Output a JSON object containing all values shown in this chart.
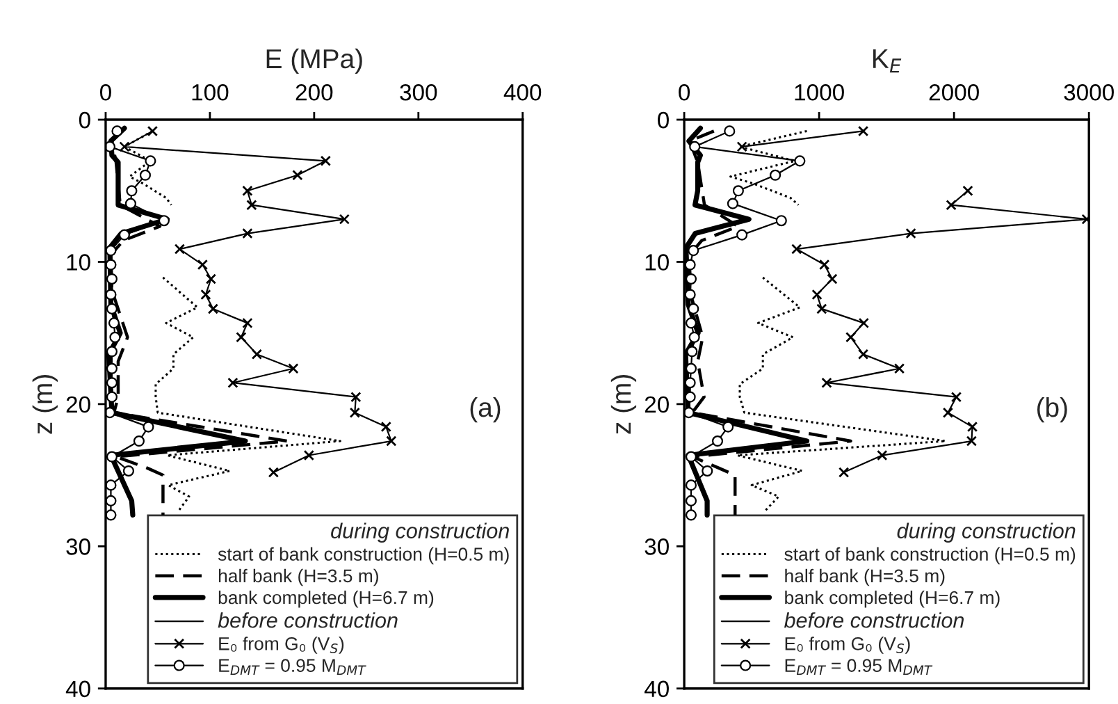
{
  "chart_data": [
    {
      "type": "line",
      "xlabel": "E (MPa)",
      "ylabel": "z (m)",
      "xlim": [
        0,
        400
      ],
      "xticks": [
        0,
        100,
        200,
        300,
        400
      ],
      "ylim": [
        40,
        0
      ],
      "yticks": [
        0,
        10,
        20,
        30,
        40
      ],
      "grid": false,
      "legend": "bottom right",
      "legend_title": "during construction",
      "annotations": [
        "(a)",
        "before construction"
      ],
      "series": [
        {
          "name": "start of bank construction (H=0.5 m)",
          "color": "#000000",
          "line_style": "dotted",
          "marker": "none",
          "x": [
            45,
            18,
            43,
            23,
            36,
            58,
            63,
            null,
            55,
            88,
            58,
            84,
            65,
            65,
            48,
            48,
            50,
            225,
            59,
            119,
            60,
            80,
            70
          ],
          "values": [
            0.8,
            1.9,
            2.9,
            4.0,
            4.5,
            5.5,
            6.0,
            null,
            11.1,
            13.2,
            14.3,
            15.3,
            16.5,
            17.5,
            18.6,
            19.5,
            20.6,
            22.6,
            23.6,
            24.7,
            25.7,
            26.5,
            27.5
          ]
        },
        {
          "name": "half bank (H=3.5 m)",
          "color": "#000000",
          "line_style": "dashed",
          "marker": "none",
          "x": [
            15,
            6,
            10,
            14,
            52,
            17,
            5,
            6,
            21,
            12,
            12,
            8,
            174,
            10,
            40,
            55,
            55
          ],
          "values": [
            0.8,
            1.5,
            3.0,
            6.0,
            7.5,
            8.5,
            9.5,
            12.0,
            15.3,
            17.0,
            19.5,
            20.6,
            22.6,
            23.7,
            24.5,
            25.0,
            27.8
          ]
        },
        {
          "name": "bank completed (H=6.7 m)",
          "color": "#000000",
          "line_style": "solid",
          "marker": "none",
          "x": [
            18,
            5,
            6,
            12,
            12,
            12,
            59,
            15,
            4,
            5,
            14,
            3,
            6,
            134,
            5,
            25,
            26
          ],
          "values": [
            0.6,
            1.5,
            2.5,
            3.0,
            5.0,
            6.0,
            7.0,
            8.0,
            9.0,
            13.0,
            15.0,
            16.5,
            20.6,
            22.6,
            23.6,
            26.8,
            27.8
          ]
        },
        {
          "name": "E₀ from G₀ (V$_{S}$)",
          "color": "#000000",
          "line_style": "solid",
          "marker": "cross",
          "x": [
            45,
            18,
            211,
            184,
            136,
            140,
            229,
            136,
            71,
            93,
            101,
            96,
            103,
            136,
            130,
            145,
            180,
            122,
            240,
            239,
            269,
            274,
            195,
            161
          ],
          "values": [
            0.8,
            1.9,
            2.9,
            3.9,
            5.0,
            6.0,
            7.0,
            8.0,
            9.1,
            10.2,
            11.2,
            12.3,
            13.3,
            14.3,
            15.3,
            16.5,
            17.5,
            18.5,
            19.5,
            20.6,
            21.6,
            22.6,
            23.6,
            24.8
          ]
        },
        {
          "name": "E$_{DMT}$ = 0.95 M$_{DMT}$",
          "color": "#000000",
          "line_style": "solid",
          "marker": "circle",
          "x": [
            11,
            4,
            43,
            38,
            25,
            24,
            56,
            18,
            5,
            5,
            6,
            5,
            6,
            8,
            9,
            6,
            6,
            6,
            6,
            4,
            41,
            32,
            6,
            22,
            5,
            5,
            5
          ],
          "values": [
            0.8,
            1.9,
            2.9,
            3.9,
            5.0,
            5.9,
            7.1,
            8.1,
            9.2,
            10.2,
            11.2,
            12.3,
            13.3,
            14.3,
            15.3,
            16.3,
            17.5,
            18.5,
            19.5,
            20.6,
            21.6,
            22.6,
            23.7,
            24.7,
            25.7,
            26.8,
            27.8
          ]
        }
      ]
    },
    {
      "type": "line",
      "xlabel": "K$_{E}$",
      "ylabel": "z (m)",
      "xlim": [
        0,
        3000
      ],
      "xticks": [
        0,
        1000,
        2000,
        3000
      ],
      "ylim": [
        40,
        0
      ],
      "yticks": [
        0,
        10,
        20,
        30,
        40
      ],
      "grid": false,
      "legend": "bottom right",
      "legend_title": "during construction",
      "annotations": [
        "(b)",
        "before construction"
      ],
      "series": [
        {
          "name": "start of bank construction (H=0.5 m)",
          "color": "#000000",
          "line_style": "dotted",
          "marker": "none",
          "x": [
            909,
            412,
            820,
            343,
            514,
            788,
            847,
            null,
            583,
            857,
            548,
            806,
            583,
            583,
            412,
            412,
            446,
            1938,
            394,
            875,
            500,
            700,
            600
          ],
          "values": [
            0.8,
            1.9,
            2.9,
            4.0,
            4.5,
            5.5,
            6.0,
            null,
            11.1,
            13.2,
            14.3,
            15.3,
            16.5,
            17.5,
            18.6,
            19.5,
            20.6,
            22.6,
            23.6,
            24.7,
            25.7,
            26.5,
            27.5
          ]
        },
        {
          "name": "half bank (H=3.5 m)",
          "color": "#000000",
          "line_style": "dashed",
          "marker": "none",
          "x": [
            220,
            40,
            100,
            150,
            400,
            130,
            40,
            40,
            137,
            100,
            147,
            60,
            1234,
            60,
            257,
            377,
            377
          ],
          "values": [
            0.8,
            1.5,
            3.0,
            6.0,
            7.5,
            8.5,
            9.5,
            12.0,
            15.3,
            17.0,
            19.5,
            20.6,
            22.6,
            23.7,
            24.5,
            25.0,
            27.8
          ]
        },
        {
          "name": "bank completed (H=6.7 m)",
          "color": "#000000",
          "line_style": "solid",
          "marker": "none",
          "x": [
            120,
            35,
            120,
            100,
            100,
            80,
            480,
            82,
            13,
            30,
            103,
            10,
            30,
            909,
            30,
            170,
            170
          ],
          "values": [
            0.6,
            1.5,
            2.5,
            3.0,
            5.0,
            6.0,
            7.0,
            8.0,
            9.0,
            13.0,
            15.0,
            16.5,
            20.6,
            22.6,
            23.6,
            26.8,
            27.8
          ]
        },
        {
          "name": "E₀ from G₀ (V$_{S}$)",
          "color": "#000000",
          "line_style": "solid",
          "marker": "cross",
          "x": [
            1327,
            428,
            null,
            null,
            2102,
            1979,
            2984,
            1680,
            833,
            1039,
            1097,
            984,
            1019,
            1331,
            1235,
            1327,
            1595,
            1056,
            2017,
            1955,
            2136,
            2130,
            1467,
            1183
          ],
          "values": [
            0.8,
            1.9,
            null,
            null,
            5.0,
            6.0,
            7.0,
            8.0,
            9.1,
            10.2,
            11.2,
            12.3,
            13.3,
            14.3,
            15.3,
            16.5,
            17.5,
            18.5,
            19.5,
            20.6,
            21.6,
            22.6,
            23.6,
            24.8
          ]
        },
        {
          "name": "E$_{DMT}$ = 0.95 M$_{DMT}$",
          "color": "#000000",
          "line_style": "solid",
          "marker": "circle",
          "x": [
            336,
            78,
            857,
            675,
            401,
            360,
            720,
            428,
            68,
            44,
            51,
            44,
            68,
            51,
            75,
            58,
            51,
            44,
            44,
            34,
            325,
            247,
            51,
            171,
            51,
            51,
            51
          ],
          "values": [
            0.8,
            1.9,
            2.9,
            3.9,
            5.0,
            5.9,
            7.1,
            8.1,
            9.2,
            10.2,
            11.2,
            12.3,
            13.3,
            14.3,
            15.3,
            16.3,
            17.5,
            18.5,
            19.5,
            20.6,
            21.6,
            22.6,
            23.7,
            24.7,
            25.7,
            26.8,
            27.8
          ]
        }
      ]
    }
  ]
}
